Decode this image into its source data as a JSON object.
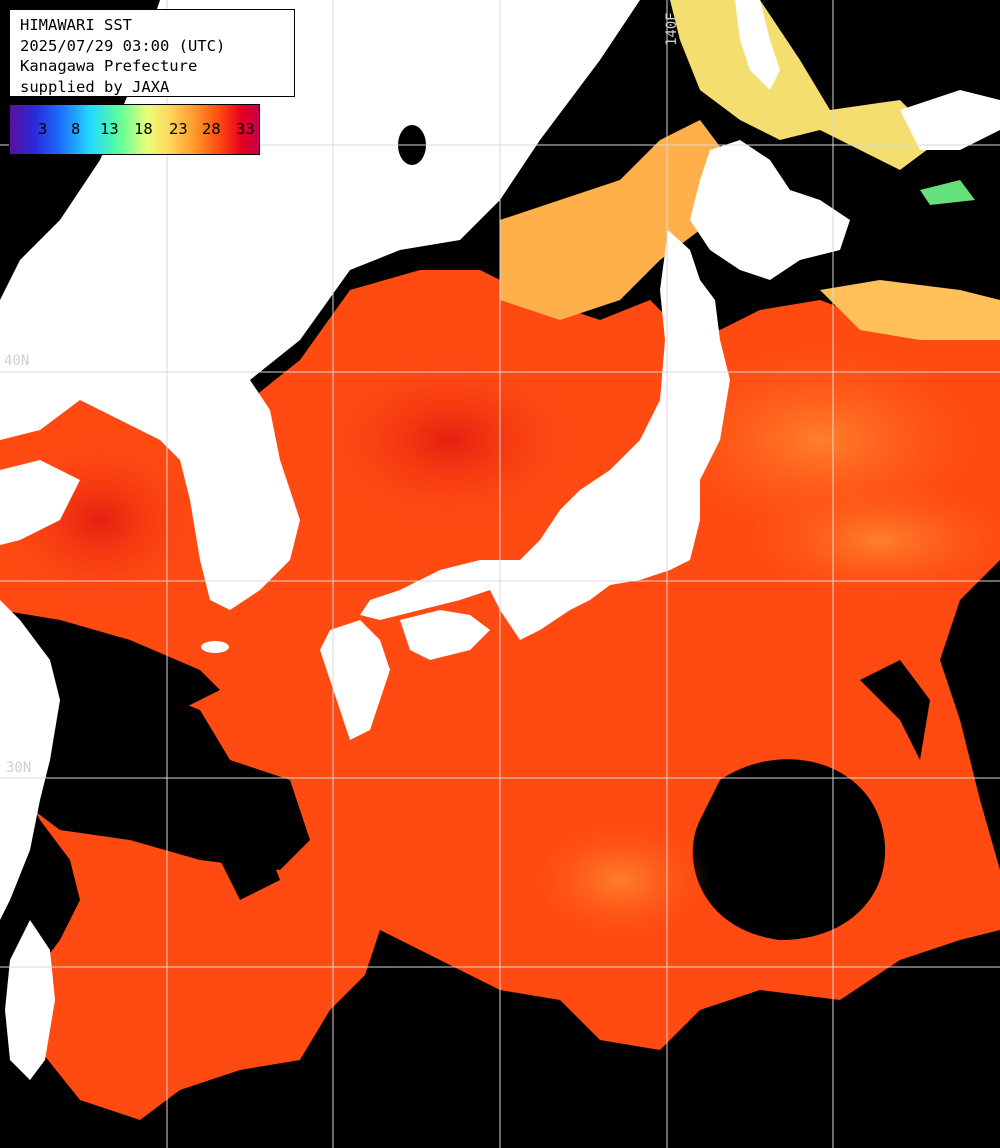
{
  "info": {
    "title": "HIMAWARI SST",
    "datetime": "2025/07/29 03:00 (UTC)",
    "region": "Kanagawa Prefecture",
    "credit": "supplied by JAXA"
  },
  "colorbar": {
    "ticks": [
      "3",
      "8",
      "13",
      "18",
      "23",
      "28",
      "33"
    ]
  },
  "coords": {
    "lon_140": "140E",
    "lat_40": "40N",
    "lat_30": "30N"
  },
  "colors": {
    "land": "#ffffff",
    "cloud": "#000000",
    "sea_warm": "#ff4a10",
    "sea_hot": "#e82a10",
    "sea_mild": "#ffb04a",
    "sea_cool": "#f0e070",
    "grid": "#d8d8d8"
  }
}
